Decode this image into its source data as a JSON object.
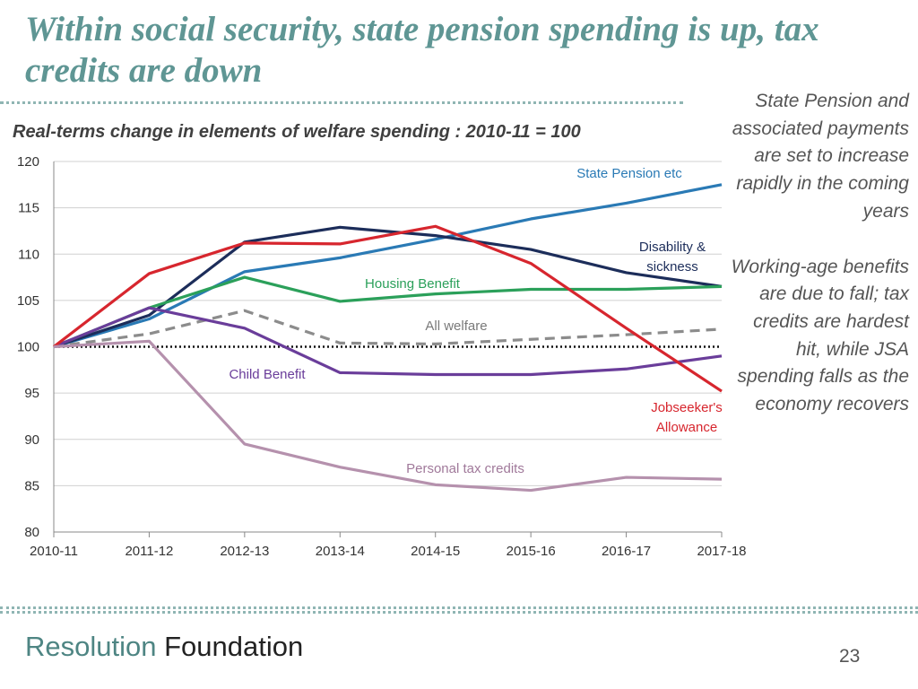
{
  "slide": {
    "title": "Within social security, state pension spending is up, tax credits are down",
    "commentary_1": "State Pension and associated payments are set to increase rapidly in the coming years",
    "commentary_2": "Working-age benefits are due to fall; tax credits are hardest hit, while JSA spending falls as the economy recovers",
    "brand_part1": "Resolution",
    "brand_part2": "Foundation",
    "page_number": "23"
  },
  "chart_data": {
    "type": "line",
    "title": "Real-terms change in elements of welfare spending : 2010-11 = 100",
    "xlabel": "",
    "ylabel": "",
    "categories": [
      "2010-11",
      "2011-12",
      "2012-13",
      "2013-14",
      "2014-15",
      "2015-16",
      "2016-17",
      "2017-18"
    ],
    "ylim": [
      80,
      120
    ],
    "yticks": [
      80,
      85,
      90,
      95,
      100,
      105,
      110,
      115,
      120
    ],
    "baseline": 100,
    "series": [
      {
        "name": "State Pension etc",
        "color": "#2a7ab5",
        "dashed": false,
        "values": [
          100,
          103.0,
          108.1,
          109.6,
          111.6,
          113.8,
          115.5,
          117.5
        ]
      },
      {
        "name": "Disability & sickness",
        "color": "#1c2d5a",
        "dashed": false,
        "values": [
          100,
          103.4,
          111.3,
          112.9,
          112.0,
          110.5,
          108.0,
          106.5
        ]
      },
      {
        "name": "Housing Benefit",
        "color": "#2ba05a",
        "dashed": false,
        "values": [
          100,
          104.2,
          107.5,
          104.9,
          105.7,
          106.2,
          106.2,
          106.5
        ]
      },
      {
        "name": "All welfare",
        "color": "#8c8c8c",
        "dashed": true,
        "values": [
          100,
          101.4,
          103.9,
          100.4,
          100.3,
          100.8,
          101.3,
          101.9
        ]
      },
      {
        "name": "Child Benefit",
        "color": "#6a3d9a",
        "dashed": false,
        "values": [
          100,
          104.2,
          102.0,
          97.2,
          97.0,
          97.0,
          97.6,
          99.0
        ]
      },
      {
        "name": "Jobseeker's Allowance",
        "color": "#d7262e",
        "dashed": false,
        "values": [
          100,
          107.9,
          111.2,
          111.1,
          113.0,
          109.0,
          102.0,
          95.2
        ]
      },
      {
        "name": "Personal tax credits",
        "color": "#b591ad",
        "dashed": false,
        "values": [
          100,
          100.6,
          89.5,
          87.0,
          85.1,
          84.5,
          85.9,
          85.7
        ]
      }
    ],
    "labels": [
      {
        "text": "State Pension etc",
        "color": "#2a7ab5"
      },
      {
        "text": "Disability &",
        "color": "#1c2d5a"
      },
      {
        "text": "sickness",
        "color": "#1c2d5a"
      },
      {
        "text": "Housing Benefit",
        "color": "#2ba05a"
      },
      {
        "text": "All welfare",
        "color": "#7a7a7a"
      },
      {
        "text": "Child Benefit",
        "color": "#6a3d9a"
      },
      {
        "text": "Jobseeker's",
        "color": "#d7262e"
      },
      {
        "text": "Allowance",
        "color": "#d7262e"
      },
      {
        "text": "Personal tax credits",
        "color": "#a0799a"
      }
    ]
  }
}
